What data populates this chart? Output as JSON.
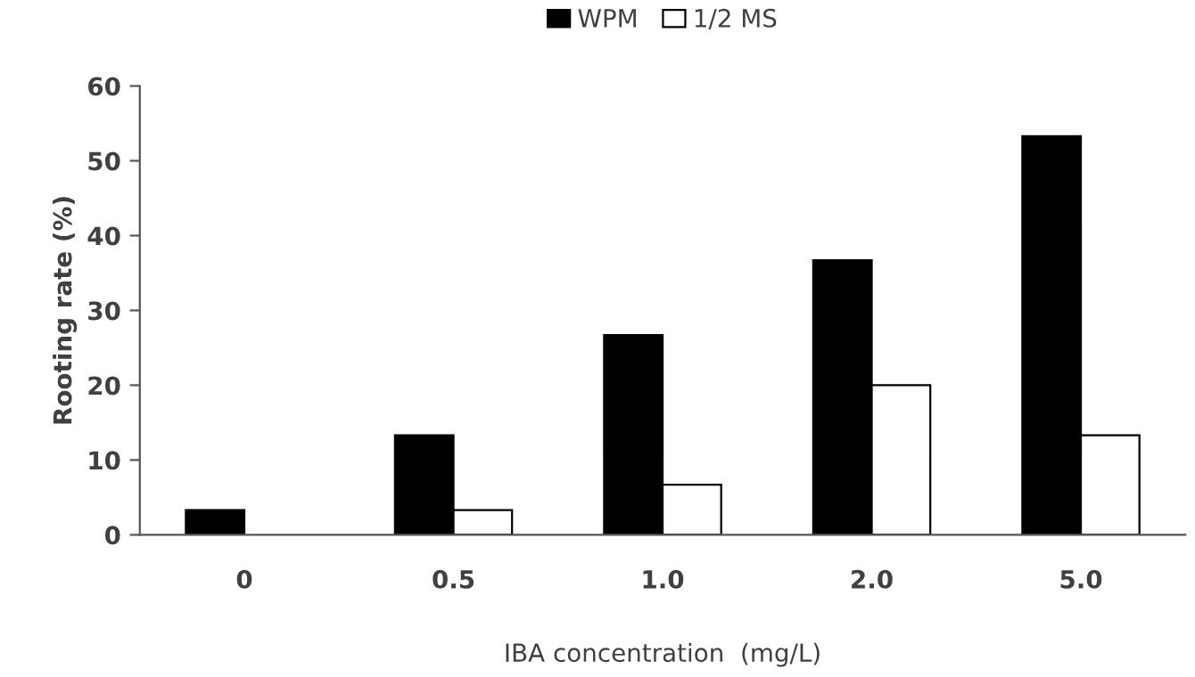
{
  "chart_data": {
    "type": "bar",
    "xlabel": "IBA concentration  (mg/L)",
    "ylabel": "Rooting rate (%)",
    "categories": [
      "0",
      "0.5",
      "1.0",
      "2.0",
      "5.0"
    ],
    "series": [
      {
        "name": "WPM",
        "color": "#000000",
        "values": [
          3.3,
          13.3,
          26.7,
          36.7,
          53.3
        ]
      },
      {
        "name": "1/2 MS",
        "color": "#ffffff",
        "values": [
          0,
          3.3,
          6.7,
          20,
          13.3
        ]
      }
    ],
    "ylim": [
      0,
      60
    ],
    "yticks": [
      0,
      10,
      20,
      30,
      40,
      50,
      60
    ],
    "grid": false,
    "legend": "top"
  }
}
